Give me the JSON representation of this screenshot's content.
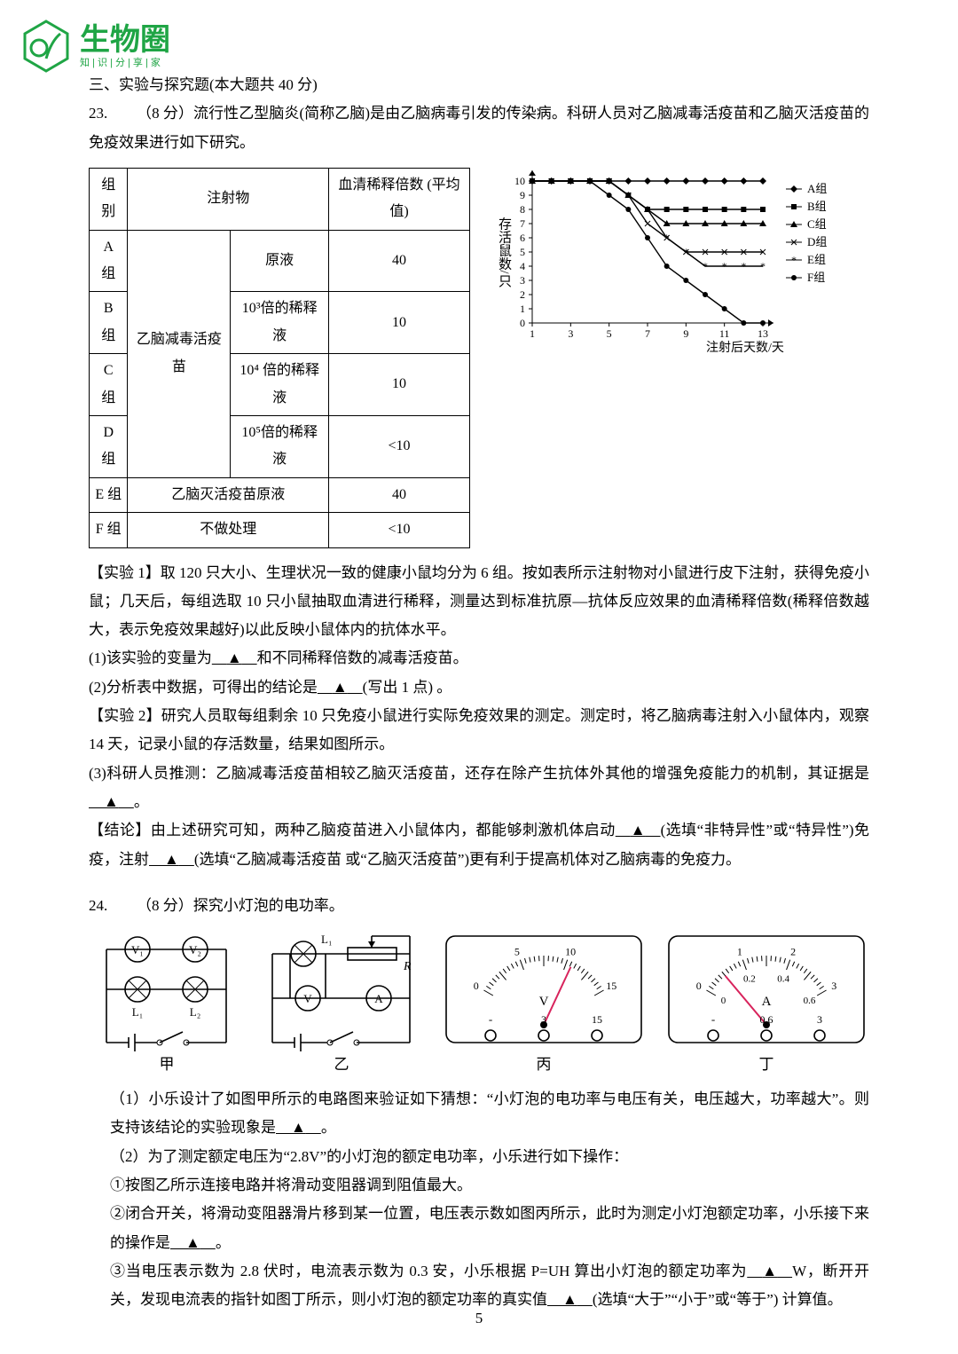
{
  "logo": {
    "top": "生物圈",
    "bottom": "知|识|分|享|家",
    "color": "#1fa545"
  },
  "section": {
    "title": "三、实验与探究题(本大题共 40 分)"
  },
  "q23": {
    "num": "23.",
    "pts": "（8 分）",
    "intro": "流行性乙型脑炎(简称乙脑)是由乙脑病毒引发的传染病。科研人员对乙脑减毒活疫苗和乙脑灭活疫苗的免疫效果进行如下研究。",
    "table": {
      "h1": "组别",
      "h2": "注射物",
      "h3": "血清稀释倍数 (平均值)",
      "rows": [
        {
          "g": "A 组",
          "mid": "",
          "r": "原液",
          "v": "40"
        },
        {
          "g": "B 组",
          "mid": "",
          "r": "10³倍的稀释液",
          "v": "10"
        },
        {
          "g": "C 组",
          "mid": "乙脑减毒活疫苗",
          "r": "10⁴ 倍的稀释液",
          "v": "10"
        },
        {
          "g": "D 组",
          "mid": "",
          "r": "10⁵倍的稀释液",
          "v": "<10"
        },
        {
          "g": "E 组",
          "mid": "乙脑灭活疫苗原液",
          "r": "",
          "v": "40"
        },
        {
          "g": "F 组",
          "mid": "不做处理",
          "r": "",
          "v": "<10"
        }
      ]
    },
    "chart": {
      "ylabel": "存活鼠数/只",
      "xlabel": "注射后天数/天",
      "ylim": [
        0,
        10
      ],
      "xlim": [
        1,
        13
      ],
      "xticks": [
        1,
        3,
        5,
        7,
        9,
        11,
        13
      ],
      "yticks": [
        0,
        1,
        2,
        3,
        4,
        5,
        6,
        7,
        8,
        9,
        10
      ],
      "legend": [
        "A组",
        "B组",
        "C组",
        "D组",
        "E组",
        "F组"
      ],
      "series_colors": [
        "#000",
        "#000",
        "#000",
        "#000",
        "#000",
        "#000"
      ],
      "markers": [
        "diamond",
        "square",
        "triangle",
        "x",
        "star",
        "circle"
      ],
      "data": {
        "A": [
          10,
          10,
          10,
          10,
          10,
          10,
          10,
          10,
          10,
          10,
          10,
          10,
          10
        ],
        "B": [
          10,
          10,
          10,
          10,
          10,
          9,
          8,
          8,
          8,
          8,
          8,
          8,
          8
        ],
        "C": [
          10,
          10,
          10,
          10,
          10,
          9,
          8,
          7,
          7,
          7,
          7,
          7,
          7
        ],
        "D": [
          10,
          10,
          10,
          10,
          10,
          9,
          7,
          6,
          5,
          5,
          5,
          5,
          5
        ],
        "E": [
          10,
          10,
          10,
          10,
          10,
          9,
          8,
          6,
          5,
          4,
          4,
          4,
          4
        ],
        "F": [
          10,
          10,
          10,
          10,
          9,
          8,
          6,
          4,
          3,
          2,
          1,
          0,
          0
        ]
      }
    },
    "p_ex1": "【实验 1】取 120 只大小、生理状况一致的健康小鼠均分为 6 组。按如表所示注射物对小鼠进行皮下注射，获得免疫小鼠；几天后，每组选取 10 只小鼠抽取血清进行稀释，测量达到标准抗原—抗体反应效果的血清稀释倍数(稀释倍数越大，表示免疫效果越好)以此反映小鼠体内的抗体水平。",
    "p1a": "(1)该实验的变量为",
    "p1b": "和不同稀释倍数的减毒活疫苗。",
    "p2a": "(2)分析表中数据，可得出的结论是",
    "p2b": "(写出 1 点) 。",
    "p_ex2": "【实验 2】研究人员取每组剩余 10 只免疫小鼠进行实际免疫效果的测定。测定时，将乙脑病毒注射入小鼠体内，观察 14 天，记录小鼠的存活数量，结果如图所示。",
    "p3a": "(3)科研人员推测：乙脑减毒活疫苗相较乙脑灭活疫苗，还存在除产生抗体外其他的增强免疫能力的机制，其证据是",
    "p3b": "。",
    "p_con_a": "【结论】由上述研究可知，两种乙脑疫苗进入小鼠体内，都能够刺激机体启动",
    "p_con_b": "(选填“非特异性”或“特异性”)免疫，注射",
    "p_con_c": "(选填“乙脑减毒活疫苗 或“乙脑灭活疫苗”)更有利于提高机体对乙脑病毒的免疫力。"
  },
  "q24": {
    "num": "24.",
    "pts": "（8 分）",
    "title": "探究小灯泡的电功率。",
    "labels": {
      "jia": "甲",
      "yi": "乙",
      "bing": "丙",
      "ding": "丁"
    },
    "circuit": {
      "V1": "V₁",
      "V2": "V₂",
      "L1": "L₁",
      "L2": "L₂",
      "R": "R",
      "V": "V",
      "A": "A",
      "meter_bing": {
        "unit": "V",
        "ranges": [
          "3",
          "15"
        ],
        "scale_top": [
          "0",
          "5",
          "10",
          "15"
        ],
        "needle_deg": 25,
        "color_needle": "#d8235c"
      },
      "meter_ding": {
        "unit": "A",
        "ranges": [
          "0.6",
          "3"
        ],
        "scale_top": [
          "0",
          "1",
          "2",
          "3"
        ],
        "scale_bot": [
          "0",
          "0.2",
          "0.4",
          "0.6"
        ],
        "needle_deg": -40,
        "color_needle": "#d8235c"
      }
    },
    "p1a": "（1）小乐设计了如图甲所示的电路图来验证如下猜想：“小灯泡的电功率与电压有关，电压越大，功率越大”。则支持该结论的实验现象是",
    "p1b": "。",
    "p2": "（2）为了测定额定电压为“2.8V”的小灯泡的额定电功率，小乐进行如下操作：",
    "p2_1": "①按图乙所示连接电路并将滑动变阻器调到阻值最大。",
    "p2_2a": "②闭合开关，将滑动变阻器滑片移到某一位置，电压表示数如图丙所示，此时为测定小灯泡额定功率，小乐接下来的操作是",
    "p2_2b": "。",
    "p2_3a": "③当电压表示数为 2.8 伏时，电流表示数为 0.3 安，小乐根据 P=UH 算出小灯泡的额定功率为",
    "p2_3b": "W，断开开关，发现电流表的指针如图丁所示，则小灯泡的额定功率的真实值",
    "p2_3c": "(选填“大于”“小于”或“等于”) 计算值。"
  },
  "blank": "▲",
  "pagenum": "5"
}
